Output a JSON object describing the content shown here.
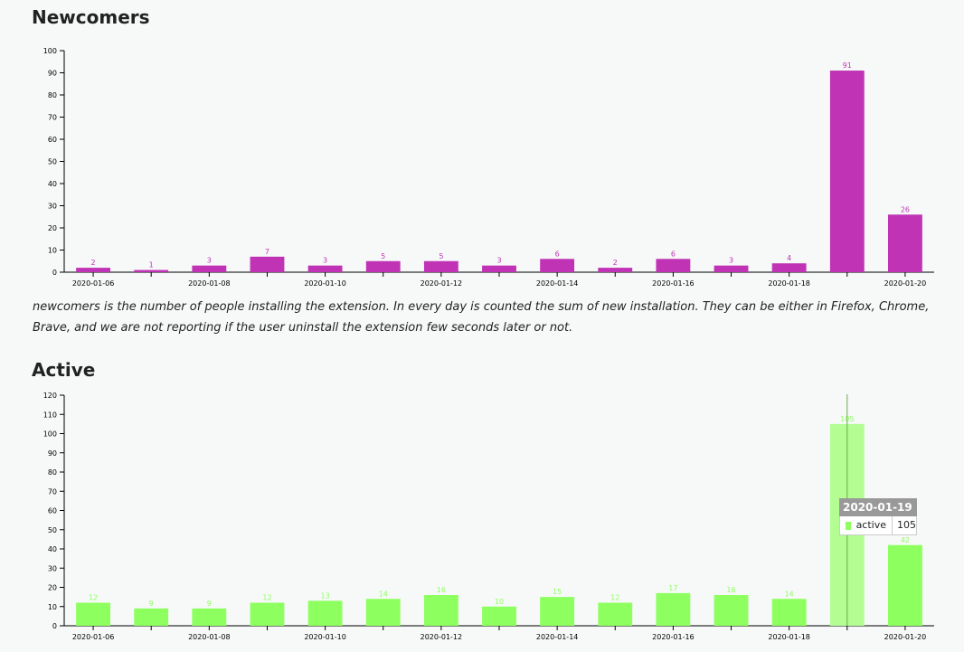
{
  "sections": {
    "newcomers_title": "Newcomers",
    "newcomers_desc": "newcomers is the number of people installing the extension. In every day is counted the sum of new installation. They can be either in Firefox, Chrome, Brave, and we are not reporting if the user uninstall the extension few seconds later or not.",
    "active_title": "Active"
  },
  "tooltip": {
    "date": "2020-01-19",
    "series": "active",
    "value": "105",
    "color": "#8dff5e"
  },
  "colors": {
    "newcomers": "#c033b5",
    "active": "#8dff5e",
    "active_highlight": "#b3fd93"
  },
  "chart_data": [
    {
      "type": "bar",
      "categories": [
        "2020-01-06",
        "2020-01-07",
        "2020-01-08",
        "2020-01-09",
        "2020-01-10",
        "2020-01-11",
        "2020-01-12",
        "2020-01-13",
        "2020-01-14",
        "2020-01-15",
        "2020-01-16",
        "2020-01-17",
        "2020-01-18",
        "2020-01-19",
        "2020-01-20"
      ],
      "x_tick_labels": [
        "2020-01-06",
        "2020-01-08",
        "2020-01-10",
        "2020-01-12",
        "2020-01-14",
        "2020-01-16",
        "2020-01-18",
        "2020-01-20"
      ],
      "series": [
        {
          "values": [
            2,
            1,
            3,
            7,
            3,
            5,
            5,
            3,
            6,
            2,
            6,
            3,
            4,
            91,
            26
          ]
        }
      ],
      "value_labels": [
        "2",
        "1",
        "3",
        "7",
        "3",
        "5",
        "5",
        "3",
        "6",
        "2",
        "6",
        "3",
        "4",
        "91",
        "26"
      ],
      "ylim": [
        0,
        100
      ],
      "y_ticks": [
        0,
        10,
        20,
        30,
        40,
        50,
        60,
        70,
        80,
        90,
        100
      ],
      "grid": false
    },
    {
      "type": "bar",
      "categories": [
        "2020-01-06",
        "2020-01-07",
        "2020-01-08",
        "2020-01-09",
        "2020-01-10",
        "2020-01-11",
        "2020-01-12",
        "2020-01-13",
        "2020-01-14",
        "2020-01-15",
        "2020-01-16",
        "2020-01-17",
        "2020-01-18",
        "2020-01-19",
        "2020-01-20"
      ],
      "x_tick_labels": [
        "2020-01-06",
        "2020-01-08",
        "2020-01-10",
        "2020-01-12",
        "2020-01-14",
        "2020-01-16",
        "2020-01-18",
        "2020-01-20"
      ],
      "series": [
        {
          "values": [
            12,
            9,
            9,
            12,
            13,
            14,
            16,
            10,
            15,
            12,
            17,
            16,
            14,
            105,
            42
          ]
        }
      ],
      "value_labels": [
        "12",
        "9",
        "9",
        "12",
        "13",
        "14",
        "16",
        "10",
        "15",
        "12",
        "17",
        "16",
        "14",
        "105",
        "42"
      ],
      "ylim": [
        0,
        120
      ],
      "y_ticks": [
        0,
        10,
        20,
        30,
        40,
        50,
        60,
        70,
        80,
        90,
        100,
        110,
        120
      ],
      "highlight_category": "2020-01-19",
      "grid": false
    }
  ]
}
